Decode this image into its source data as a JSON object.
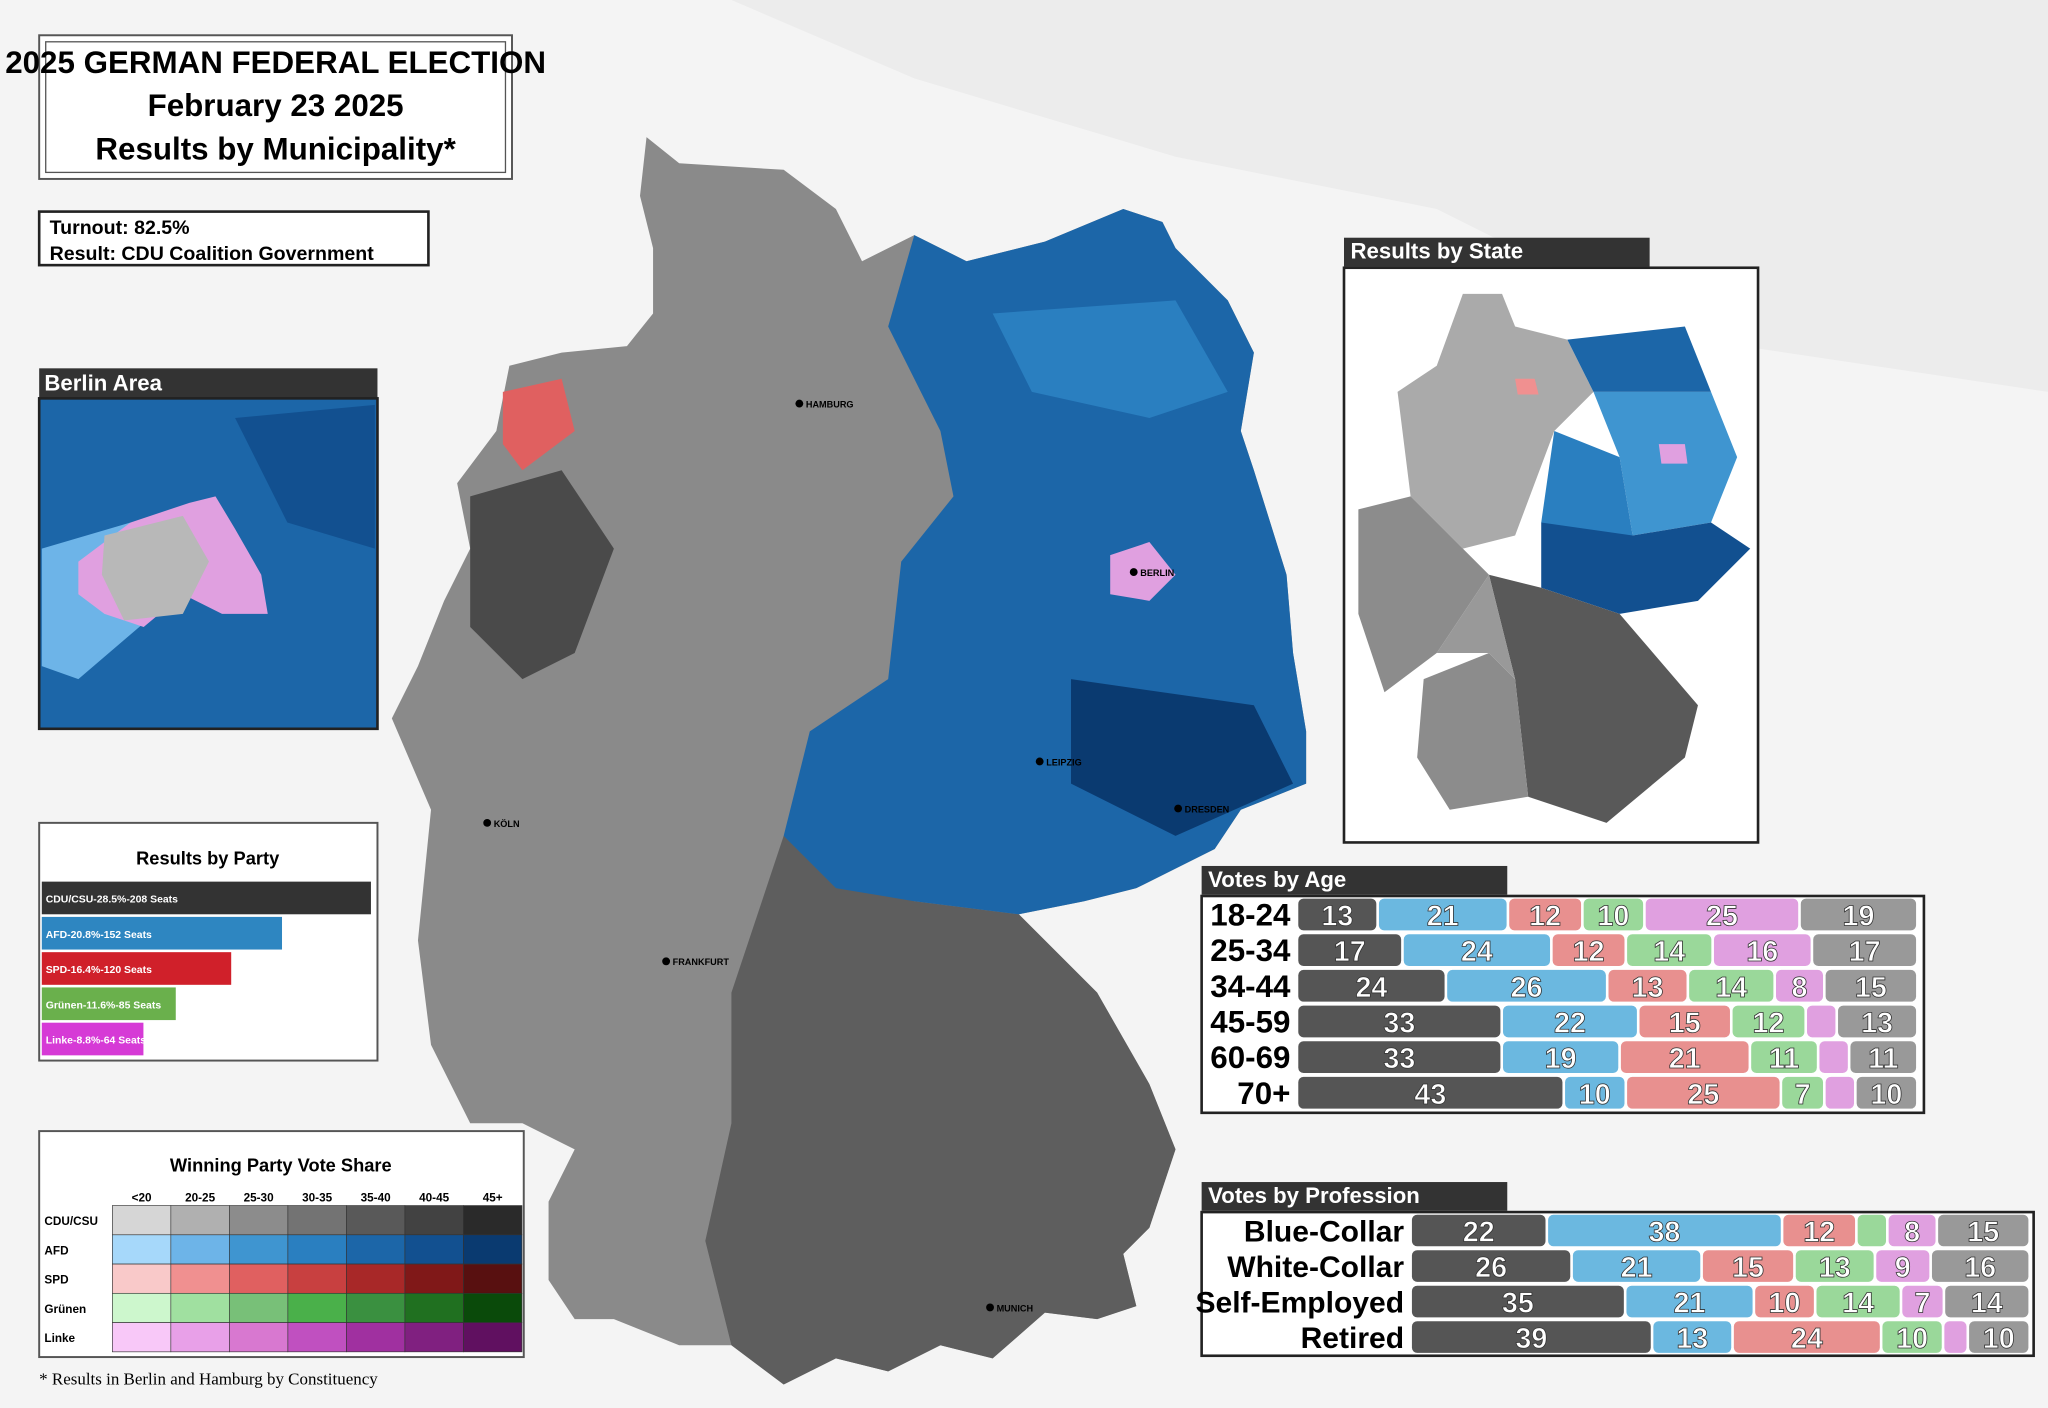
{
  "header": {
    "lines": [
      "2025 GERMAN FEDERAL ELECTION",
      "February 23 2025",
      "Results by Municipality*"
    ]
  },
  "info": {
    "lines": [
      "Turnout: 82.5%",
      "Result: CDU Coalition Government"
    ]
  },
  "berlin_area": {
    "title": "Berlin Area"
  },
  "results_by_state": {
    "title": "Results by State"
  },
  "results_by_party": {
    "title": "Results by Party",
    "bars": [
      {
        "label": "CDU/CSU-28.5%-208 Seats",
        "value": 28.5,
        "color": "#333333"
      },
      {
        "label": "AFD-20.8%-152 Seats",
        "value": 20.8,
        "color": "#2e86c1"
      },
      {
        "label": "SPD-16.4%-120 Seats",
        "value": 16.4,
        "color": "#d0202a"
      },
      {
        "label": "Grünen-11.6%-85 Seats",
        "value": 11.6,
        "color": "#6ab04c"
      },
      {
        "label": "Linke-8.8%-64 Seats",
        "value": 8.8,
        "color": "#d63ad6"
      }
    ]
  },
  "legend": {
    "title": "Winning Party Vote Share",
    "columns": [
      "<20",
      "20-25",
      "25-30",
      "30-35",
      "35-40",
      "40-45",
      "45+"
    ],
    "rows": [
      {
        "name": "CDU/CSU",
        "colors": [
          "#d6d6d6",
          "#b0b0b0",
          "#8c8c8c",
          "#737373",
          "#595959",
          "#424242",
          "#2a2a2a"
        ]
      },
      {
        "name": "AFD",
        "colors": [
          "#a6d8fa",
          "#6db4e8",
          "#3f95d0",
          "#2a7fc0",
          "#1c66a8",
          "#125090",
          "#0a3a70"
        ]
      },
      {
        "name": "SPD",
        "colors": [
          "#f9c9c9",
          "#f09090",
          "#e06060",
          "#c84040",
          "#a82828",
          "#801818",
          "#581010"
        ]
      },
      {
        "name": "Grünen",
        "colors": [
          "#cdf7cd",
          "#a0e0a0",
          "#78c078",
          "#4ab04a",
          "#3a9040",
          "#207020",
          "#0a4a0a"
        ]
      },
      {
        "name": "Linke",
        "colors": [
          "#f8c8f8",
          "#e8a0e8",
          "#d878d0",
          "#c050c0",
          "#a030a0",
          "#802080",
          "#601060"
        ]
      }
    ]
  },
  "footnote": "* Results in Berlin and Hamburg by Constituency",
  "cities": [
    "HAMBURG",
    "BERLIN",
    "LEIPZIG",
    "DRESDEN",
    "KÖLN",
    "FRANKFURT",
    "MUNICH"
  ],
  "votes_by_age": {
    "title": "Votes by Age",
    "party_colors": [
      "#555555",
      "#6bb8e0",
      "#e8908f",
      "#9ad89a",
      "#e0a0e0",
      "#999999"
    ],
    "rows": [
      {
        "label": "18-24",
        "values": [
          13,
          21,
          12,
          10,
          25,
          19
        ],
        "value_labels": [
          "13",
          "21",
          "12",
          "10",
          "25",
          "19"
        ]
      },
      {
        "label": "25-34",
        "values": [
          17,
          24,
          12,
          14,
          16,
          17
        ],
        "value_labels": [
          "17",
          "24",
          "12",
          "14",
          "16",
          "17"
        ]
      },
      {
        "label": "34-44",
        "values": [
          24,
          26,
          13,
          14,
          8,
          15
        ],
        "value_labels": [
          "24",
          "26",
          "13",
          "14",
          "8",
          "15"
        ]
      },
      {
        "label": "45-59",
        "values": [
          33,
          22,
          15,
          12,
          5,
          13
        ],
        "value_labels": [
          "33",
          "22",
          "15",
          "12",
          null,
          "13"
        ]
      },
      {
        "label": "60-69",
        "values": [
          33,
          19,
          21,
          11,
          5,
          11
        ],
        "value_labels": [
          "33",
          "19",
          "21",
          "11",
          null,
          "11"
        ]
      },
      {
        "label": "70+",
        "values": [
          43,
          10,
          25,
          7,
          5,
          10
        ],
        "value_labels": [
          "43",
          "10",
          "25",
          "7",
          null,
          "10"
        ]
      }
    ]
  },
  "votes_by_profession": {
    "title": "Votes by Profession",
    "party_colors": [
      "#555555",
      "#6bb8e0",
      "#e8908f",
      "#9ad89a",
      "#e0a0e0",
      "#999999"
    ],
    "rows": [
      {
        "label": "Blue-Collar",
        "values": [
          22,
          38,
          12,
          5,
          8,
          15
        ],
        "value_labels": [
          "22",
          "38",
          "12",
          null,
          "8",
          "15"
        ]
      },
      {
        "label": "White-Collar",
        "values": [
          26,
          21,
          15,
          13,
          9,
          16
        ],
        "value_labels": [
          "26",
          "21",
          "15",
          "13",
          "9",
          "16"
        ]
      },
      {
        "label": "Self-Employed",
        "values": [
          35,
          21,
          10,
          14,
          7,
          14
        ],
        "value_labels": [
          "35",
          "21",
          "10",
          "14",
          "7",
          "14"
        ]
      },
      {
        "label": "Retired",
        "values": [
          39,
          13,
          24,
          10,
          4,
          10
        ],
        "value_labels": [
          "39",
          "13",
          "24",
          "10",
          null,
          "10"
        ]
      }
    ]
  }
}
